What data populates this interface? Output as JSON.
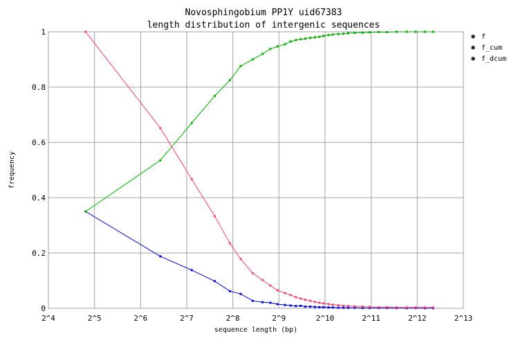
{
  "chart_data": {
    "type": "line",
    "title": "Novosphingobium PP1Y uid67383",
    "subtitle": "length distribution of intergenic sequences",
    "xlabel": "sequence length (bp)",
    "ylabel": "frequency",
    "x_scale": "log2",
    "xlim": [
      16,
      8192
    ],
    "ylim": [
      0,
      1
    ],
    "grid": true,
    "legend_position": "right",
    "x_ticks": [
      {
        "value": 16,
        "label": "2^4"
      },
      {
        "value": 32,
        "label": "2^5"
      },
      {
        "value": 64,
        "label": "2^6"
      },
      {
        "value": 128,
        "label": "2^7"
      },
      {
        "value": 256,
        "label": "2^8"
      },
      {
        "value": 512,
        "label": "2^9"
      },
      {
        "value": 1024,
        "label": "2^10"
      },
      {
        "value": 2048,
        "label": "2^11"
      },
      {
        "value": 4096,
        "label": "2^12"
      },
      {
        "value": 8192,
        "label": "2^13"
      }
    ],
    "y_ticks": [
      {
        "value": 0,
        "label": "0"
      },
      {
        "value": 0.2,
        "label": "0.2"
      },
      {
        "value": 0.4,
        "label": "0.4"
      },
      {
        "value": 0.6,
        "label": "0.6"
      },
      {
        "value": 0.8,
        "label": "0.8"
      },
      {
        "value": 1,
        "label": "1"
      }
    ],
    "series": [
      {
        "name": "f",
        "color": "#0000cc",
        "x": [
          28,
          86,
          138,
          195,
          245,
          288,
          345,
          400,
          450,
          500,
          560,
          610,
          660,
          710,
          760,
          820,
          880,
          940,
          1000,
          1080,
          1150,
          1250,
          1350,
          1450,
          1600,
          1800,
          2000,
          2300,
          2600,
          3000,
          3500,
          4000,
          4600,
          5200
        ],
        "y": [
          0.35,
          0.188,
          0.138,
          0.098,
          0.062,
          0.052,
          0.027,
          0.022,
          0.02,
          0.015,
          0.012,
          0.01,
          0.008,
          0.009,
          0.006,
          0.006,
          0.005,
          0.004,
          0.004,
          0.003,
          0.003,
          0.002,
          0.002,
          0.002,
          0.002,
          0.001,
          0.001,
          0.001,
          0.001,
          0.0005,
          0.0005,
          0.0005,
          0.0003,
          0.0002
        ]
      },
      {
        "name": "f_cum",
        "color": "#00aa00",
        "x": [
          28,
          86,
          138,
          195,
          245,
          288,
          345,
          400,
          450,
          500,
          560,
          610,
          660,
          710,
          760,
          820,
          880,
          940,
          1000,
          1080,
          1150,
          1250,
          1350,
          1450,
          1600,
          1800,
          2000,
          2300,
          2600,
          3000,
          3500,
          4000,
          4600,
          5200
        ],
        "y": [
          0.35,
          0.535,
          0.67,
          0.768,
          0.825,
          0.876,
          0.9,
          0.92,
          0.938,
          0.947,
          0.955,
          0.965,
          0.97,
          0.973,
          0.975,
          0.978,
          0.98,
          0.982,
          0.985,
          0.988,
          0.99,
          0.992,
          0.993,
          0.995,
          0.996,
          0.997,
          0.998,
          0.999,
          0.999,
          1.0,
          1.0,
          1.0,
          1.0,
          1.0
        ]
      },
      {
        "name": "f_dcum",
        "color": "#ee4477",
        "x": [
          28,
          86,
          138,
          195,
          245,
          288,
          345,
          400,
          450,
          500,
          560,
          610,
          660,
          710,
          760,
          820,
          880,
          940,
          1000,
          1080,
          1150,
          1250,
          1350,
          1450,
          1600,
          1800,
          2000,
          2300,
          2600,
          3000,
          3500,
          4000,
          4600,
          5200
        ],
        "y": [
          1.0,
          0.652,
          0.467,
          0.333,
          0.235,
          0.178,
          0.127,
          0.102,
          0.082,
          0.065,
          0.055,
          0.048,
          0.04,
          0.035,
          0.031,
          0.027,
          0.023,
          0.02,
          0.018,
          0.015,
          0.013,
          0.011,
          0.009,
          0.008,
          0.007,
          0.006,
          0.005,
          0.004,
          0.004,
          0.003,
          0.003,
          0.003,
          0.003,
          0.003
        ]
      }
    ]
  }
}
